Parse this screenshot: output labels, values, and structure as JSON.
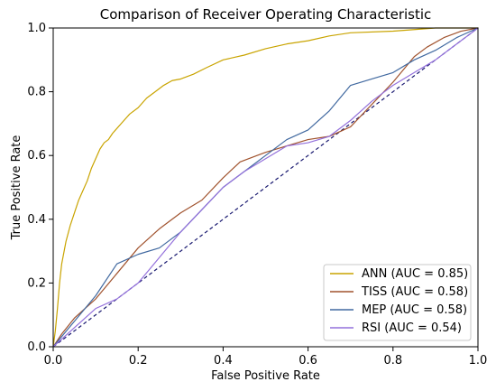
{
  "chart_data": {
    "type": "line",
    "title": "Comparison of Receiver Operating Characteristic",
    "xlabel": "False Positive Rate",
    "ylabel": "True Positive Rate",
    "xlim": [
      0,
      1
    ],
    "ylim": [
      0,
      1
    ],
    "x_ticks": [
      "0.0",
      "0.2",
      "0.4",
      "0.6",
      "0.8",
      "1.0"
    ],
    "y_ticks": [
      "0.0",
      "0.2",
      "0.4",
      "0.6",
      "0.8",
      "1.0"
    ],
    "grid": false,
    "legend_position": "lower-right",
    "reference_line": {
      "x": [
        0,
        1
      ],
      "y": [
        0,
        1
      ],
      "color": "#191970",
      "style": "dashed"
    },
    "series": [
      {
        "name": "ANN (AUC = 0.85)",
        "color": "#c9a400",
        "x": [
          0,
          0.005,
          0.01,
          0.015,
          0.02,
          0.03,
          0.04,
          0.05,
          0.06,
          0.07,
          0.08,
          0.09,
          0.1,
          0.11,
          0.12,
          0.13,
          0.14,
          0.16,
          0.18,
          0.2,
          0.22,
          0.24,
          0.26,
          0.28,
          0.3,
          0.33,
          0.36,
          0.4,
          0.45,
          0.5,
          0.55,
          0.6,
          0.65,
          0.7,
          0.8,
          0.9,
          1.0
        ],
        "y": [
          0,
          0.05,
          0.12,
          0.2,
          0.26,
          0.33,
          0.38,
          0.42,
          0.46,
          0.49,
          0.52,
          0.56,
          0.59,
          0.62,
          0.64,
          0.65,
          0.67,
          0.7,
          0.73,
          0.75,
          0.78,
          0.8,
          0.82,
          0.835,
          0.84,
          0.855,
          0.875,
          0.9,
          0.915,
          0.935,
          0.95,
          0.96,
          0.975,
          0.985,
          0.99,
          1.0,
          1.0
        ]
      },
      {
        "name": "TISS (AUC = 0.58)",
        "color": "#a0522d",
        "x": [
          0,
          0.02,
          0.05,
          0.1,
          0.15,
          0.2,
          0.25,
          0.3,
          0.35,
          0.4,
          0.44,
          0.48,
          0.5,
          0.55,
          0.6,
          0.65,
          0.7,
          0.75,
          0.8,
          0.85,
          0.88,
          0.92,
          0.96,
          1.0
        ],
        "y": [
          0,
          0.04,
          0.09,
          0.15,
          0.23,
          0.31,
          0.37,
          0.42,
          0.46,
          0.53,
          0.58,
          0.6,
          0.61,
          0.63,
          0.65,
          0.66,
          0.69,
          0.76,
          0.83,
          0.91,
          0.94,
          0.97,
          0.99,
          1.0
        ]
      },
      {
        "name": "MEP (AUC = 0.58)",
        "color": "#4169a0",
        "x": [
          0,
          0.05,
          0.1,
          0.15,
          0.2,
          0.25,
          0.3,
          0.35,
          0.4,
          0.45,
          0.5,
          0.55,
          0.6,
          0.65,
          0.7,
          0.75,
          0.8,
          0.85,
          0.9,
          0.95,
          1.0
        ],
        "y": [
          0,
          0.08,
          0.16,
          0.26,
          0.29,
          0.31,
          0.36,
          0.43,
          0.5,
          0.55,
          0.6,
          0.65,
          0.68,
          0.74,
          0.82,
          0.84,
          0.86,
          0.9,
          0.93,
          0.97,
          1.0
        ]
      },
      {
        "name": "RSI (AUC = 0.54)",
        "color": "#9370db",
        "x": [
          0,
          0.05,
          0.1,
          0.15,
          0.2,
          0.25,
          0.3,
          0.35,
          0.4,
          0.45,
          0.5,
          0.55,
          0.6,
          0.65,
          0.7,
          0.75,
          0.8,
          0.85,
          0.9,
          0.95,
          1.0
        ],
        "y": [
          0,
          0.06,
          0.12,
          0.15,
          0.2,
          0.28,
          0.36,
          0.43,
          0.5,
          0.55,
          0.59,
          0.63,
          0.64,
          0.66,
          0.71,
          0.77,
          0.82,
          0.86,
          0.9,
          0.95,
          1.0
        ]
      }
    ]
  }
}
